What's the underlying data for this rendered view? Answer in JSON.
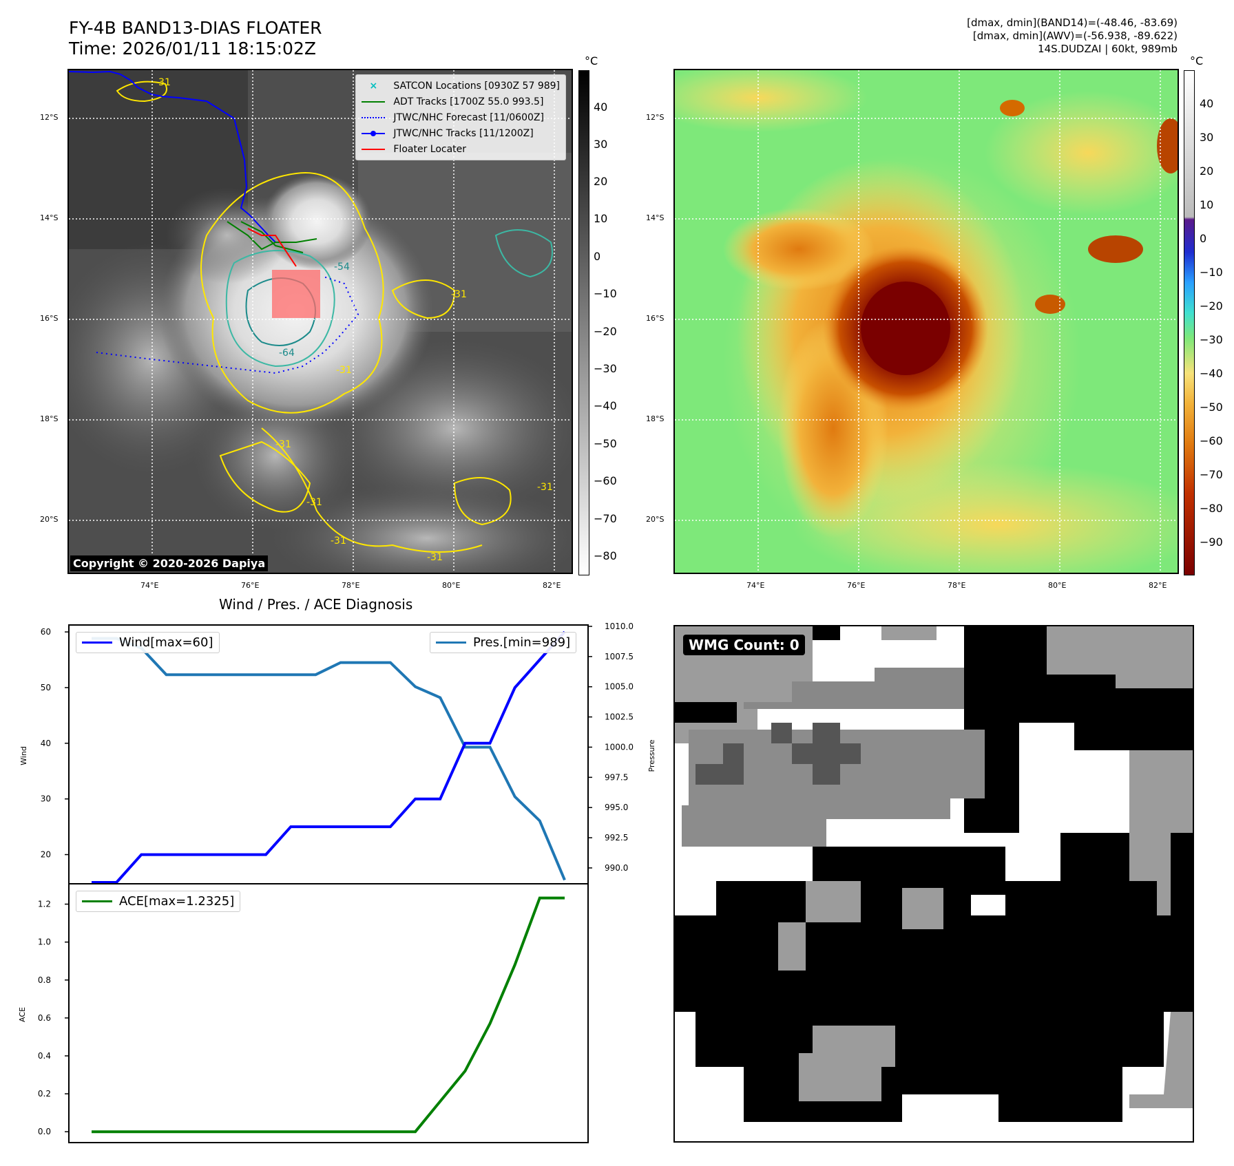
{
  "header": {
    "title_line1": "FY-4B BAND13-DIAS FLOATER",
    "title_line2": "Time: 2026/01/11 18:15:02Z",
    "info_line1": "[dmax, dmin](BAND14)=(-48.46, -83.69)",
    "info_line2": "[dmax, dmin](AWV)=(-56.938, -89.622)",
    "info_line3": "14S.DUDZAI | 60kt, 989mb"
  },
  "map_axes": {
    "lat_labels": [
      "12°S",
      "14°S",
      "16°S",
      "18°S",
      "20°S"
    ],
    "lon_labels": [
      "74°E",
      "76°E",
      "78°E",
      "80°E",
      "82°E"
    ]
  },
  "ir_panel": {
    "copyright": "Copyright © 2020-2026 Dapiya",
    "legend": [
      {
        "label": "SATCON Locations [0930Z 57 989]",
        "color": "#00bfbf",
        "style": "x"
      },
      {
        "label": "ADT Tracks [1700Z 55.0 993.5]",
        "color": "#008000",
        "style": "solid"
      },
      {
        "label": "JTWC/NHC Forecast [11/0600Z]",
        "color": "#0000ff",
        "style": "dotted"
      },
      {
        "label": "JTWC/NHC Tracks [11/1200Z]",
        "color": "#0000ff",
        "style": "dot-line"
      },
      {
        "label": "Floater Locater",
        "color": "#ff0000",
        "style": "solid"
      }
    ],
    "contour_labels": [
      "-31",
      "-31",
      "-31",
      "-31",
      "-31",
      "-31",
      "-31",
      "-31",
      "-54",
      "-64"
    ],
    "colorbar_unit": "°C",
    "colorbar_ticks": [
      "40",
      "30",
      "20",
      "10",
      "0",
      "−10",
      "−20",
      "−30",
      "−40",
      "−50",
      "−60",
      "−70",
      "−80"
    ]
  },
  "wv_panel": {
    "colorbar_unit": "°C",
    "colorbar_ticks": [
      "40",
      "30",
      "20",
      "10",
      "0",
      "−10",
      "−20",
      "−30",
      "−40",
      "−50",
      "−60",
      "−70",
      "−80",
      "−90"
    ]
  },
  "wmg_panel": {
    "label": "WMG Count: 0"
  },
  "colors": {
    "wind": "#0000ff",
    "pressure": "#1f77b4",
    "ace": "#008000",
    "floater": "#ff0000"
  },
  "chart_data": [
    {
      "type": "line",
      "title": "Wind / Pres. / ACE Diagnosis",
      "xlabel": "",
      "ylabel": "Wind",
      "ylabel_right": "Pressure",
      "ylim": [
        15,
        61
      ],
      "ylim_right": [
        988.8,
        1010
      ],
      "yticks": [
        20,
        30,
        40,
        50,
        60
      ],
      "yticks_right": [
        "1010.0",
        "1007.5",
        "1005.0",
        "1002.5",
        "1000.0",
        "997.5",
        "995.0",
        "992.5",
        "990.0"
      ],
      "x": [
        0,
        1,
        2,
        3,
        4,
        5,
        6,
        7,
        8,
        9,
        10,
        11,
        12,
        13,
        14,
        15,
        16,
        17,
        18,
        19
      ],
      "series": [
        {
          "name": "Wind",
          "legend": "Wind[max=60]",
          "axis": "left",
          "values": [
            15,
            15,
            20,
            20,
            20,
            20,
            20,
            20,
            25,
            25,
            25,
            25,
            25,
            30,
            30,
            40,
            40,
            50,
            55,
            60
          ]
        },
        {
          "name": "Pres.",
          "legend": "Pres.[min=989]",
          "axis": "right",
          "values": [
            1009.0,
            1009.0,
            1008.2,
            1006.0,
            1006.0,
            1006.0,
            1006.0,
            1006.0,
            1006.0,
            1006.0,
            1007.0,
            1007.0,
            1007.0,
            1005.0,
            1004.1,
            1000.0,
            1000.0,
            995.9,
            993.9,
            989.0
          ]
        }
      ]
    },
    {
      "type": "line",
      "xlabel": "",
      "ylabel": "ACE",
      "ylim": [
        -0.05,
        1.3
      ],
      "yticks": [
        "0.0",
        "0.2",
        "0.4",
        "0.6",
        "0.8",
        "1.0",
        "1.2"
      ],
      "x": [
        0,
        1,
        2,
        3,
        4,
        5,
        6,
        7,
        8,
        9,
        10,
        11,
        12,
        13,
        14,
        15,
        16,
        17,
        18,
        19
      ],
      "series": [
        {
          "name": "ACE",
          "legend": "ACE[max=1.2325]",
          "values": [
            0,
            0,
            0,
            0,
            0,
            0,
            0,
            0,
            0,
            0,
            0,
            0,
            0,
            0,
            0.16,
            0.32,
            0.57,
            0.88,
            1.2325,
            1.2325
          ]
        }
      ]
    }
  ]
}
